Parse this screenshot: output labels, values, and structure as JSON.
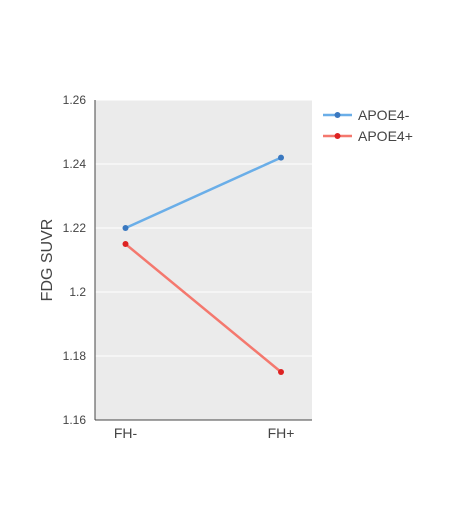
{
  "chart_data": {
    "type": "line",
    "title": "",
    "xlabel": "",
    "ylabel": "FDG SUVR",
    "categories": [
      "FH-",
      "FH+"
    ],
    "ylim": [
      1.16,
      1.26
    ],
    "yticks": [
      1.16,
      1.18,
      1.2,
      1.22,
      1.24,
      1.26
    ],
    "ytick_labels": [
      "1.16",
      "1.18",
      "1.2",
      "1.22",
      "1.24",
      "1.26"
    ],
    "grid": true,
    "legend_position": "top-right",
    "series": [
      {
        "name": "APOE4-",
        "values": [
          1.22,
          1.242
        ],
        "line_color": "#6aaee8",
        "marker_color": "#3a78c0"
      },
      {
        "name": "APOE4+",
        "values": [
          1.215,
          1.175
        ],
        "line_color": "#f4786e",
        "marker_color": "#dd2222"
      }
    ],
    "background_color": "#ebebeb",
    "grid_color": "#ffffff",
    "axis_color": "#444444"
  }
}
